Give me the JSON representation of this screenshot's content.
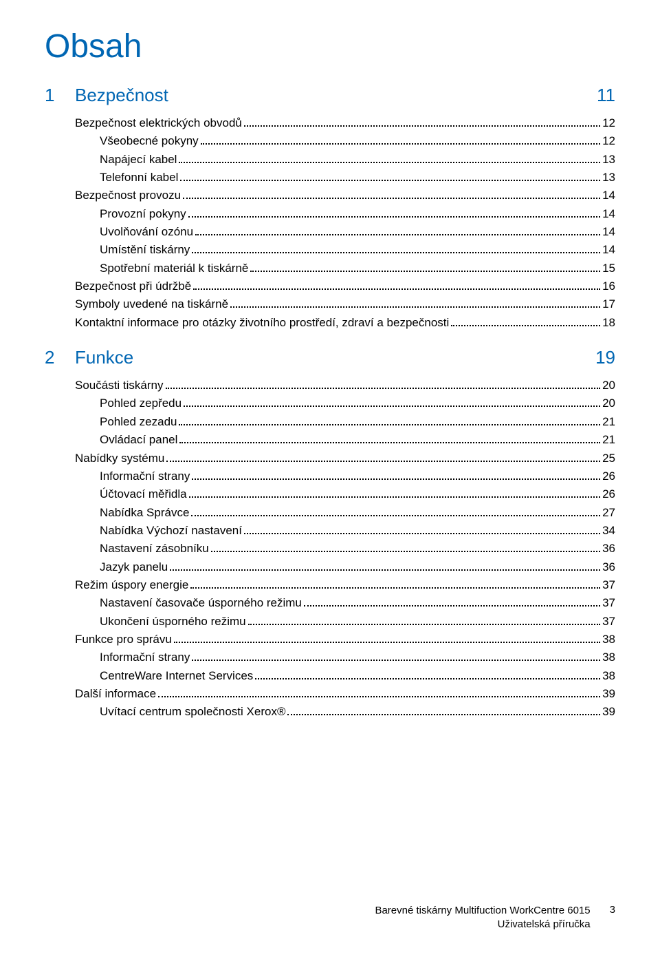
{
  "title": "Obsah",
  "chapters": [
    {
      "num": "1",
      "title": "Bezpečnost",
      "page": "11",
      "entries": [
        {
          "level": 0,
          "text": "Bezpečnost elektrických obvodů",
          "page": "12"
        },
        {
          "level": 1,
          "text": "Všeobecné pokyny",
          "page": "12"
        },
        {
          "level": 1,
          "text": "Napájecí kabel",
          "page": "13"
        },
        {
          "level": 1,
          "text": "Telefonní kabel",
          "page": "13"
        },
        {
          "level": 0,
          "text": "Bezpečnost provozu",
          "page": "14"
        },
        {
          "level": 1,
          "text": "Provozní pokyny",
          "page": "14"
        },
        {
          "level": 1,
          "text": "Uvolňování ozónu",
          "page": "14"
        },
        {
          "level": 1,
          "text": "Umístění tiskárny",
          "page": "14"
        },
        {
          "level": 1,
          "text": "Spotřební materiál k tiskárně",
          "page": "15"
        },
        {
          "level": 0,
          "text": "Bezpečnost při údržbě",
          "page": "16"
        },
        {
          "level": 0,
          "text": "Symboly uvedené na tiskárně",
          "page": "17"
        },
        {
          "level": 0,
          "text": "Kontaktní informace pro otázky životního prostředí, zdraví a bezpečnosti",
          "page": "18"
        }
      ]
    },
    {
      "num": "2",
      "title": "Funkce",
      "page": "19",
      "entries": [
        {
          "level": 0,
          "text": "Součásti tiskárny",
          "page": "20"
        },
        {
          "level": 1,
          "text": "Pohled zepředu",
          "page": "20"
        },
        {
          "level": 1,
          "text": "Pohled zezadu",
          "page": "21"
        },
        {
          "level": 1,
          "text": "Ovládací panel",
          "page": "21"
        },
        {
          "level": 0,
          "text": "Nabídky systému",
          "page": "25"
        },
        {
          "level": 1,
          "text": "Informační strany",
          "page": "26"
        },
        {
          "level": 1,
          "text": "Účtovací měřidla",
          "page": "26"
        },
        {
          "level": 1,
          "text": "Nabídka Správce",
          "page": "27"
        },
        {
          "level": 1,
          "text": "Nabídka Výchozí nastavení",
          "page": "34"
        },
        {
          "level": 1,
          "text": "Nastavení zásobníku",
          "page": "36"
        },
        {
          "level": 1,
          "text": "Jazyk panelu",
          "page": "36"
        },
        {
          "level": 0,
          "text": "Režim úspory energie",
          "page": "37"
        },
        {
          "level": 1,
          "text": "Nastavení časovače úsporného režimu",
          "page": "37"
        },
        {
          "level": 1,
          "text": "Ukončení úsporného režimu",
          "page": "37"
        },
        {
          "level": 0,
          "text": "Funkce pro správu",
          "page": "38"
        },
        {
          "level": 1,
          "text": "Informační strany",
          "page": "38"
        },
        {
          "level": 1,
          "text": "CentreWare Internet Services",
          "page": "38"
        },
        {
          "level": 0,
          "text": "Další informace",
          "page": "39"
        },
        {
          "level": 1,
          "text": "Uvítací centrum společnosti Xerox®",
          "page": "39"
        }
      ]
    }
  ],
  "footer": {
    "line1": "Barevné tiskárny Multifuction WorkCentre 6015",
    "line2": "Uživatelská příručka",
    "page_number": "3"
  },
  "colors": {
    "heading": "#0066b3",
    "text": "#000000",
    "background": "#ffffff"
  },
  "typography": {
    "title_size": 48,
    "chapter_size": 26,
    "entry_size": 17,
    "footer_size": 15,
    "font_family": "Arial"
  }
}
